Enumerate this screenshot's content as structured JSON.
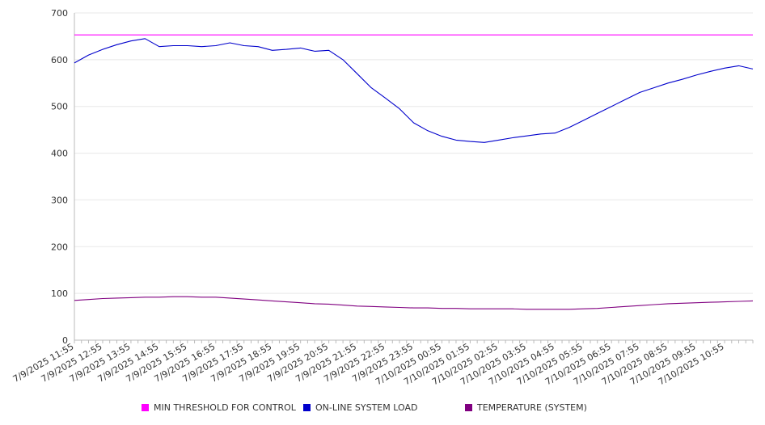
{
  "chart_data": {
    "type": "line",
    "title": "",
    "xlabel": "",
    "ylabel": "",
    "ylim": [
      0,
      700
    ],
    "yticks": [
      0,
      100,
      200,
      300,
      400,
      500,
      600,
      700
    ],
    "grid": true,
    "legend_position": "bottom",
    "x_tick_labels": [
      "7/9/2025 11:55",
      "7/9/2025 12:55",
      "7/9/2025 13:55",
      "7/9/2025 14:55",
      "7/9/2025 15:55",
      "7/9/2025 16:55",
      "7/9/2025 17:55",
      "7/9/2025 18:55",
      "7/9/2025 19:55",
      "7/9/2025 20:55",
      "7/9/2025 21:55",
      "7/9/2025 22:55",
      "7/9/2025 23:55",
      "7/10/2025 00:55",
      "7/10/2025 01:55",
      "7/10/2025 02:55",
      "7/10/2025 03:55",
      "7/10/2025 04:55",
      "7/10/2025 05:55",
      "7/10/2025 06:55",
      "7/10/2025 07:55",
      "7/10/2025 08:55",
      "7/10/2025 09:55",
      "7/10/2025 10:55"
    ],
    "x_hours": [
      0,
      0.5,
      1,
      1.5,
      2,
      2.5,
      3,
      3.5,
      4,
      4.5,
      5,
      5.5,
      6,
      6.5,
      7,
      7.5,
      8,
      8.5,
      9,
      9.5,
      10,
      10.5,
      11,
      11.5,
      12,
      12.5,
      13,
      13.5,
      14,
      14.5,
      15,
      15.5,
      16,
      16.5,
      17,
      17.5,
      18,
      18.5,
      19,
      19.5,
      20,
      20.5,
      21,
      21.5,
      22,
      22.5,
      23,
      23.5,
      24
    ],
    "series": [
      {
        "name": "MIN THRESHOLD FOR CONTROL",
        "color": "#ff00ff",
        "values": [
          653,
          653,
          653,
          653,
          653,
          653,
          653,
          653,
          653,
          653,
          653,
          653,
          653,
          653,
          653,
          653,
          653,
          653,
          653,
          653,
          653,
          653,
          653,
          653,
          653,
          653,
          653,
          653,
          653,
          653,
          653,
          653,
          653,
          653,
          653,
          653,
          653,
          653,
          653,
          653,
          653,
          653,
          653,
          653,
          653,
          653,
          653,
          653,
          653
        ]
      },
      {
        "name": "ON-LINE SYSTEM LOAD",
        "color": "#0000cc",
        "values": [
          593,
          610,
          622,
          632,
          640,
          645,
          628,
          630,
          630,
          628,
          630,
          636,
          630,
          628,
          620,
          622,
          625,
          618,
          620,
          600,
          570,
          540,
          518,
          495,
          465,
          448,
          436,
          428,
          425,
          423,
          428,
          433,
          437,
          441,
          443,
          455,
          470,
          485,
          500,
          515,
          530,
          540,
          550,
          558,
          567,
          575,
          582,
          587,
          580
        ]
      },
      {
        "name": "TEMPERATURE (SYSTEM)",
        "color": "#800080",
        "values": [
          85,
          87,
          89,
          90,
          91,
          92,
          92,
          93,
          93,
          92,
          92,
          90,
          88,
          86,
          84,
          82,
          80,
          78,
          77,
          75,
          73,
          72,
          71,
          70,
          69,
          69,
          68,
          68,
          67,
          67,
          67,
          67,
          66,
          66,
          66,
          66,
          67,
          68,
          70,
          72,
          74,
          76,
          78,
          79,
          80,
          81,
          82,
          83,
          84
        ]
      }
    ]
  }
}
